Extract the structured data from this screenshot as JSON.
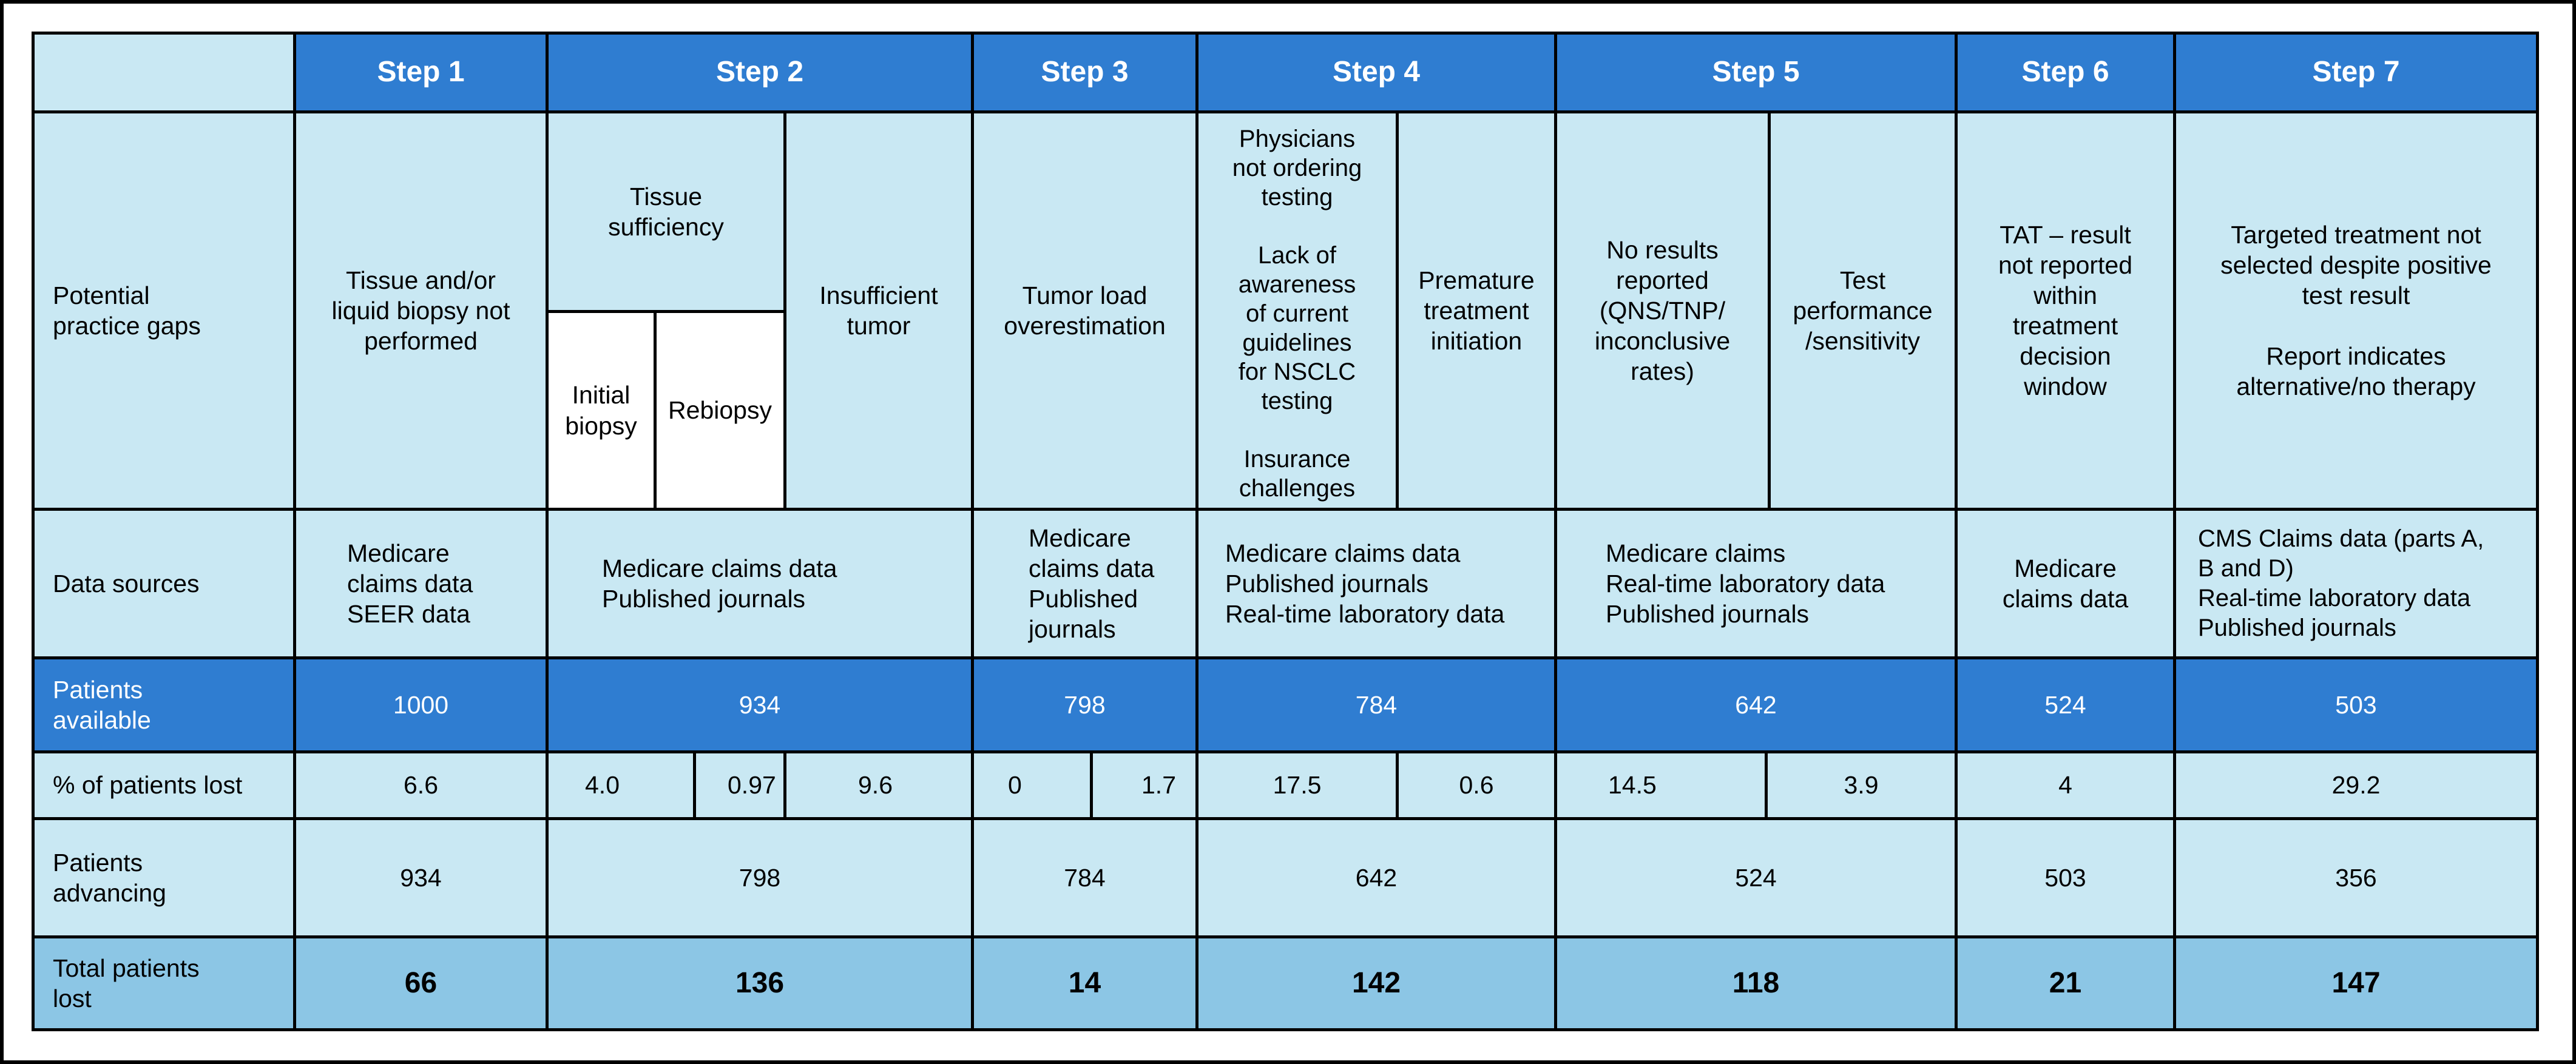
{
  "steps": [
    "Step 1",
    "Step 2",
    "Step 3",
    "Step 4",
    "Step 5",
    "Step 6",
    "Step 7"
  ],
  "rows": {
    "gaps": "Potential\npractice gaps",
    "sources": "Data sources",
    "available": "Patients\navailable",
    "lost": "% of patients lost",
    "advancing": "Patients\nadvancing",
    "total": "Total patients\nlost"
  },
  "gaps": {
    "s1": "Tissue and/or\nliquid biopsy not\nperformed",
    "s2_tissue": "Tissue\nsufficiency",
    "s2_initial": "Initial\nbiopsy",
    "s2_rebiopsy": "Rebiopsy",
    "s2_insufficient": "Insufficient\ntumor",
    "s3": "Tumor load\noverestimation",
    "s4_a": "Physicians\nnot ordering\ntesting\n\nLack of\nawareness\nof current\nguidelines\nfor NSCLC\ntesting\n\nInsurance\nchallenges",
    "s4_b": "Premature\ntreatment\ninitiation",
    "s5_a": "No results\nreported\n(QNS/TNP/\ninconclusive\nrates)",
    "s5_b": "Test\nperformance\n/sensitivity",
    "s6": "TAT – result\nnot reported\nwithin\ntreatment\ndecision\nwindow",
    "s7": "Targeted treatment not\nselected despite positive\ntest result\n\nReport indicates\nalternative/no therapy"
  },
  "sources": {
    "s1": "Medicare\nclaims data\nSEER data",
    "s2": "Medicare claims data\nPublished journals",
    "s3": "Medicare\nclaims data\nPublished\njournals",
    "s4": "Medicare claims data\nPublished journals\nReal-time laboratory data",
    "s5": "Medicare claims\nReal-time laboratory data\nPublished journals",
    "s6": "Medicare\nclaims data",
    "s7": "CMS Claims data (parts A,\nB and D)\nReal-time laboratory data\nPublished journals"
  },
  "available": [
    "1000",
    "934",
    "798",
    "784",
    "642",
    "524",
    "503"
  ],
  "lost": {
    "s1": "6.6",
    "s2": [
      "4.0",
      "0.97",
      "9.6"
    ],
    "s3": [
      "0",
      "1.7"
    ],
    "s4": [
      "17.5",
      "0.6"
    ],
    "s5": [
      "14.5",
      "3.9"
    ],
    "s6": "4",
    "s7": "29.2"
  },
  "advancing": [
    "934",
    "798",
    "784",
    "642",
    "524",
    "503",
    "356"
  ],
  "total": [
    "66",
    "136",
    "14",
    "142",
    "118",
    "21",
    "147"
  ]
}
